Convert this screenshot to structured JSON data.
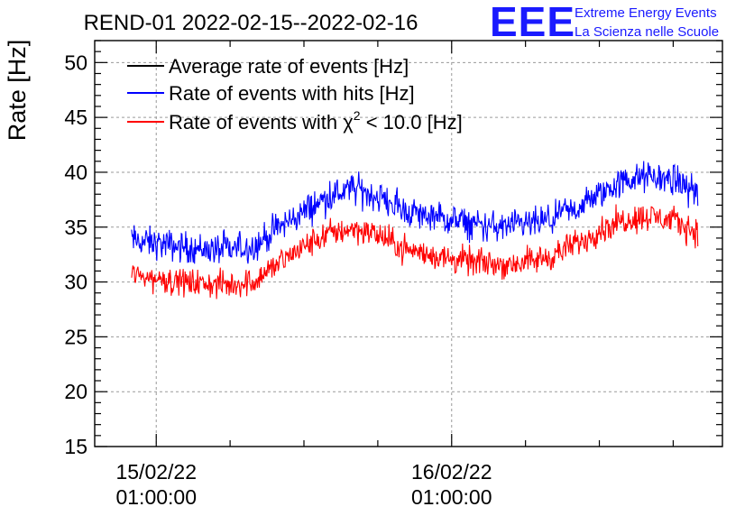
{
  "brand": {
    "logo": "EEE",
    "line1": "Extreme Energy Events",
    "line2": "La Scienza nelle Scuole",
    "color": "#1a1aff"
  },
  "chart_data": {
    "type": "line",
    "title": "REND-01 2022-02-15--2022-02-16",
    "xlabel": "",
    "ylabel": "Rate [Hz]",
    "ylim": [
      15,
      52
    ],
    "xlim": [
      "2022-02-14 20:00",
      "2022-02-16 23:00"
    ],
    "grid": true,
    "legend_position": "top-left",
    "y_ticks": [
      15,
      20,
      25,
      30,
      35,
      40,
      45,
      50
    ],
    "x_ticks": [
      {
        "x": "2022-02-15 01:00",
        "line1": "15/02/22",
        "line2": "01:00:00"
      },
      {
        "x": "2022-02-16 01:00",
        "line1": "16/02/22",
        "line2": "01:00:00"
      }
    ],
    "legend": [
      {
        "name": "Average rate of events [Hz]",
        "color": "#000000"
      },
      {
        "name": "Rate of events with hits [Hz]",
        "color": "#0000ff"
      },
      {
        "name_prefix": "Rate of events with ",
        "symbol": "χ",
        "superscript": "2",
        "name_suffix": " < 10.0 [Hz]",
        "color": "#ff0000"
      }
    ],
    "noise": {
      "hits": 1.0,
      "chi2": 0.9
    },
    "series": [
      {
        "name": "Rate of events with hits [Hz]",
        "color": "#0000ff",
        "x": [
          "2022-02-14 23:00",
          "2022-02-15 01:00",
          "2022-02-15 03:00",
          "2022-02-15 05:00",
          "2022-02-15 07:00",
          "2022-02-15 09:00",
          "2022-02-15 11:00",
          "2022-02-15 13:00",
          "2022-02-15 15:00",
          "2022-02-15 17:00",
          "2022-02-15 19:00",
          "2022-02-15 21:00",
          "2022-02-15 23:00",
          "2022-02-16 01:00",
          "2022-02-16 03:00",
          "2022-02-16 05:00",
          "2022-02-16 07:00",
          "2022-02-16 09:00",
          "2022-02-16 11:00",
          "2022-02-16 13:00",
          "2022-02-16 15:00",
          "2022-02-16 17:00",
          "2022-02-16 19:00",
          "2022-02-16 21:00"
        ],
        "values": [
          33.8,
          33.5,
          33.2,
          33.0,
          32.9,
          33.3,
          35.0,
          36.4,
          37.8,
          38.5,
          37.8,
          36.6,
          36.0,
          35.6,
          35.2,
          35.0,
          35.2,
          35.6,
          36.6,
          38.0,
          39.2,
          39.6,
          39.3,
          38.2
        ]
      },
      {
        "name": "Rate of events with χ2 < 10.0 [Hz]",
        "color": "#ff0000",
        "x": [
          "2022-02-14 23:00",
          "2022-02-15 01:00",
          "2022-02-15 03:00",
          "2022-02-15 05:00",
          "2022-02-15 07:00",
          "2022-02-15 09:00",
          "2022-02-15 11:00",
          "2022-02-15 13:00",
          "2022-02-15 15:00",
          "2022-02-15 17:00",
          "2022-02-15 19:00",
          "2022-02-15 21:00",
          "2022-02-15 23:00",
          "2022-02-16 01:00",
          "2022-02-16 03:00",
          "2022-02-16 05:00",
          "2022-02-16 07:00",
          "2022-02-16 09:00",
          "2022-02-16 11:00",
          "2022-02-16 13:00",
          "2022-02-16 15:00",
          "2022-02-16 17:00",
          "2022-02-16 19:00",
          "2022-02-16 21:00"
        ],
        "values": [
          30.6,
          30.3,
          30.0,
          29.8,
          29.7,
          30.1,
          31.8,
          33.2,
          34.4,
          34.9,
          34.3,
          33.1,
          32.5,
          32.1,
          31.8,
          31.6,
          31.8,
          32.3,
          33.4,
          34.7,
          35.7,
          36.0,
          35.6,
          34.5
        ]
      }
    ]
  }
}
